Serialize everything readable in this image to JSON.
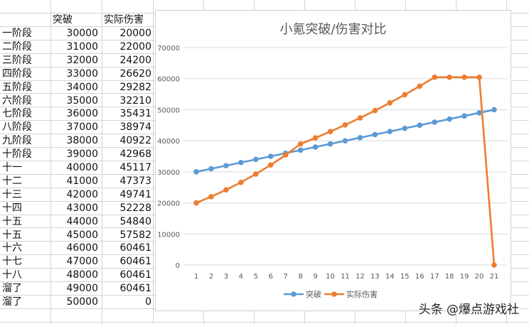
{
  "sheet": {
    "headers": {
      "label": "",
      "col1": "突破",
      "col2": "实际伤害"
    },
    "rows": [
      {
        "label": "一阶段",
        "breakthrough": "30000",
        "damage": "20000"
      },
      {
        "label": "二阶段",
        "breakthrough": "31000",
        "damage": "22000"
      },
      {
        "label": "三阶段",
        "breakthrough": "32000",
        "damage": "24200"
      },
      {
        "label": "四阶段",
        "breakthrough": "33000",
        "damage": "26620"
      },
      {
        "label": "五阶段",
        "breakthrough": "34000",
        "damage": "29282"
      },
      {
        "label": "六阶段",
        "breakthrough": "35000",
        "damage": "32210"
      },
      {
        "label": "七阶段",
        "breakthrough": "36000",
        "damage": "35431"
      },
      {
        "label": "八阶段",
        "breakthrough": "37000",
        "damage": "38974"
      },
      {
        "label": "九阶段",
        "breakthrough": "38000",
        "damage": "40922"
      },
      {
        "label": "十阶段",
        "breakthrough": "39000",
        "damage": "42968"
      },
      {
        "label": "十一",
        "breakthrough": "40000",
        "damage": "45117"
      },
      {
        "label": "十二",
        "breakthrough": "41000",
        "damage": "47373"
      },
      {
        "label": "十三",
        "breakthrough": "42000",
        "damage": "49741"
      },
      {
        "label": "十四",
        "breakthrough": "43000",
        "damage": "52228"
      },
      {
        "label": "十五",
        "breakthrough": "44000",
        "damage": "54840"
      },
      {
        "label": "十五",
        "breakthrough": "45000",
        "damage": "57582"
      },
      {
        "label": "十六",
        "breakthrough": "46000",
        "damage": "60461"
      },
      {
        "label": "十七",
        "breakthrough": "47000",
        "damage": "60461"
      },
      {
        "label": "十八",
        "breakthrough": "48000",
        "damage": "60461"
      },
      {
        "label": "溜了",
        "breakthrough": "49000",
        "damage": "60461"
      },
      {
        "label": "溜了",
        "breakthrough": "50000",
        "damage": "0"
      }
    ]
  },
  "chart_data": {
    "type": "line",
    "title": "小氪突破/伤害对比",
    "xlabel": "",
    "ylabel": "",
    "x": [
      1,
      2,
      3,
      4,
      5,
      6,
      7,
      8,
      9,
      10,
      11,
      12,
      13,
      14,
      15,
      16,
      17,
      18,
      19,
      20,
      21
    ],
    "series": [
      {
        "name": "突破",
        "color": "#5b9bd5",
        "values": [
          30000,
          31000,
          32000,
          33000,
          34000,
          35000,
          36000,
          37000,
          38000,
          39000,
          40000,
          41000,
          42000,
          43000,
          44000,
          45000,
          46000,
          47000,
          48000,
          49000,
          50000
        ]
      },
      {
        "name": "实际伤害",
        "color": "#ed7d31",
        "values": [
          20000,
          22000,
          24200,
          26620,
          29282,
          32210,
          35431,
          38974,
          40922,
          42968,
          45117,
          47373,
          49741,
          52228,
          54840,
          57582,
          60461,
          60461,
          60461,
          60461,
          0
        ]
      }
    ],
    "yticks": [
      "0",
      "10000",
      "20000",
      "30000",
      "40000",
      "50000",
      "60000",
      "70000"
    ],
    "ylim": [
      0,
      70000
    ],
    "grid": true,
    "legend_position": "bottom"
  },
  "watermark": "头条 @爆点游戏社"
}
